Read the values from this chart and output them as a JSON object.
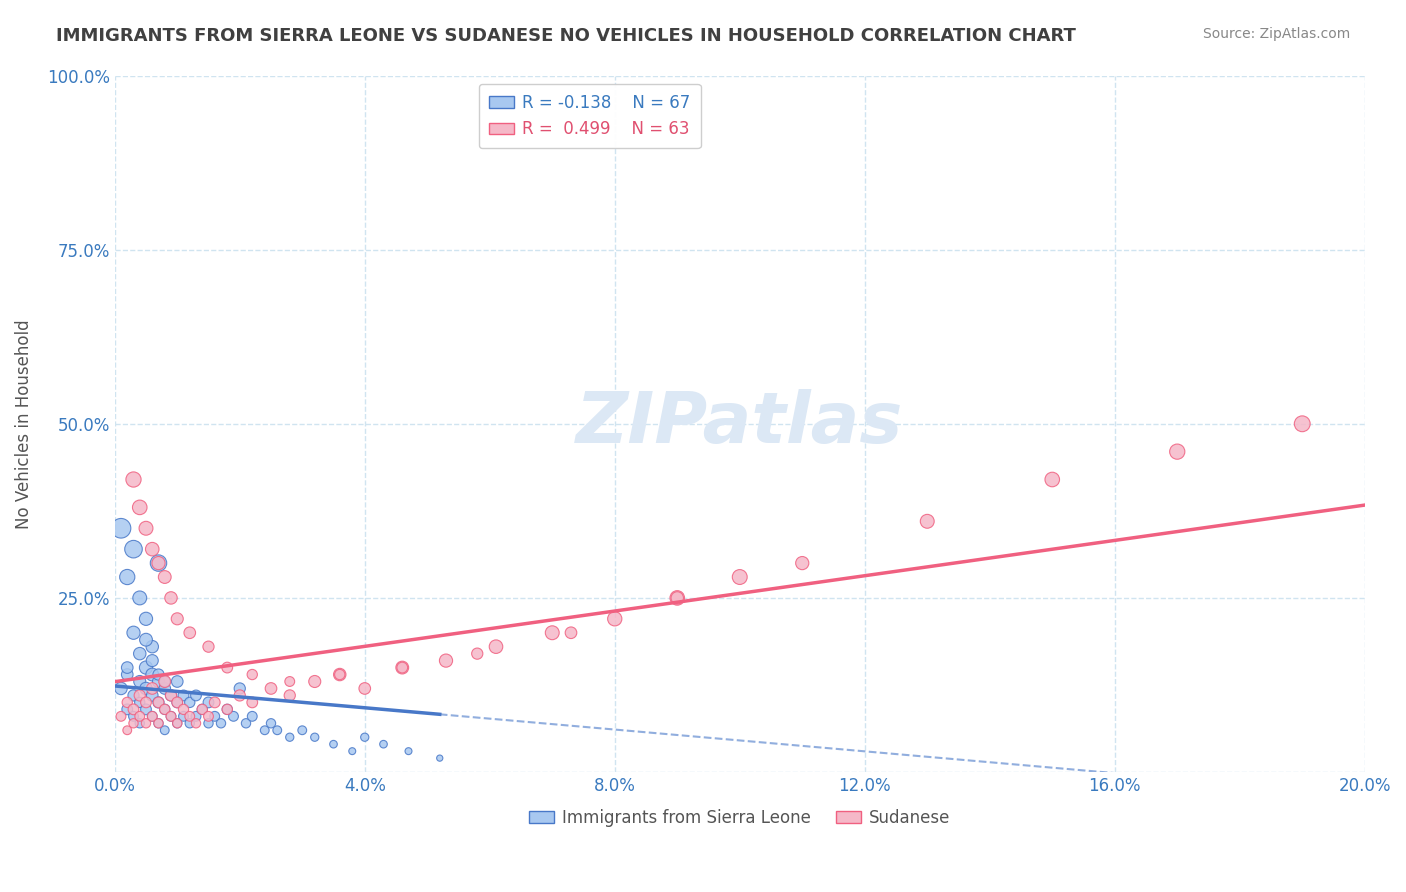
{
  "title": "IMMIGRANTS FROM SIERRA LEONE VS SUDANESE NO VEHICLES IN HOUSEHOLD CORRELATION CHART",
  "source": "Source: ZipAtlas.com",
  "xlabel": "",
  "ylabel": "No Vehicles in Household",
  "xlim": [
    0.0,
    0.2
  ],
  "ylim": [
    0.0,
    1.0
  ],
  "xticks": [
    0.0,
    0.04,
    0.08,
    0.12,
    0.16,
    0.2
  ],
  "yticks": [
    0.0,
    0.25,
    0.5,
    0.75,
    1.0
  ],
  "xticklabels": [
    "0.0%",
    "4.0%",
    "8.0%",
    "12.0%",
    "16.0%",
    "20.0%"
  ],
  "yticklabels": [
    "",
    "25.0%",
    "50.0%",
    "75.0%",
    "100.0%"
  ],
  "background_color": "#ffffff",
  "grid_color": "#d0e4f0",
  "sierra_leone_color": "#a8c8f0",
  "sudanese_color": "#f5b8c8",
  "sierra_leone_line_color": "#4878c8",
  "sudanese_line_color": "#f06080",
  "watermark_color": "#dce8f5",
  "legend_r_sierra": "R = -0.138",
  "legend_n_sierra": "N = 67",
  "legend_r_sudanese": "R =  0.499",
  "legend_n_sudanese": "N = 63",
  "sierra_leone_R": -0.138,
  "sierra_leone_N": 67,
  "sudanese_R": 0.499,
  "sudanese_N": 63,
  "sierra_leone_x": [
    0.001,
    0.002,
    0.002,
    0.003,
    0.003,
    0.004,
    0.004,
    0.004,
    0.005,
    0.005,
    0.005,
    0.006,
    0.006,
    0.006,
    0.007,
    0.007,
    0.007,
    0.008,
    0.008,
    0.008,
    0.009,
    0.009,
    0.01,
    0.01,
    0.01,
    0.011,
    0.011,
    0.012,
    0.012,
    0.013,
    0.013,
    0.014,
    0.015,
    0.015,
    0.016,
    0.017,
    0.018,
    0.019,
    0.02,
    0.021,
    0.022,
    0.024,
    0.025,
    0.026,
    0.028,
    0.03,
    0.032,
    0.035,
    0.038,
    0.04,
    0.043,
    0.047,
    0.052,
    0.001,
    0.002,
    0.003,
    0.004,
    0.005,
    0.006,
    0.007,
    0.002,
    0.003,
    0.004,
    0.005,
    0.006,
    0.007,
    0.008
  ],
  "sierra_leone_y": [
    0.12,
    0.09,
    0.14,
    0.08,
    0.11,
    0.1,
    0.13,
    0.07,
    0.09,
    0.12,
    0.15,
    0.08,
    0.11,
    0.14,
    0.07,
    0.1,
    0.13,
    0.09,
    0.12,
    0.06,
    0.08,
    0.11,
    0.07,
    0.1,
    0.13,
    0.08,
    0.11,
    0.07,
    0.1,
    0.08,
    0.11,
    0.09,
    0.07,
    0.1,
    0.08,
    0.07,
    0.09,
    0.08,
    0.12,
    0.07,
    0.08,
    0.06,
    0.07,
    0.06,
    0.05,
    0.06,
    0.05,
    0.04,
    0.03,
    0.05,
    0.04,
    0.03,
    0.02,
    0.35,
    0.28,
    0.32,
    0.25,
    0.22,
    0.18,
    0.3,
    0.15,
    0.2,
    0.17,
    0.19,
    0.16,
    0.14,
    0.13
  ],
  "sierra_leone_sizes": [
    80,
    60,
    70,
    50,
    65,
    55,
    75,
    45,
    60,
    80,
    90,
    50,
    70,
    85,
    45,
    65,
    75,
    55,
    70,
    40,
    50,
    65,
    45,
    60,
    70,
    50,
    60,
    45,
    55,
    50,
    60,
    55,
    45,
    60,
    50,
    45,
    55,
    50,
    65,
    45,
    50,
    40,
    45,
    40,
    35,
    40,
    35,
    30,
    25,
    35,
    30,
    25,
    20,
    200,
    120,
    160,
    100,
    90,
    80,
    140,
    70,
    90,
    80,
    85,
    75,
    65,
    60
  ],
  "sudanese_x": [
    0.001,
    0.002,
    0.002,
    0.003,
    0.003,
    0.004,
    0.004,
    0.005,
    0.005,
    0.006,
    0.006,
    0.007,
    0.007,
    0.008,
    0.008,
    0.009,
    0.009,
    0.01,
    0.01,
    0.011,
    0.012,
    0.013,
    0.014,
    0.015,
    0.016,
    0.018,
    0.02,
    0.022,
    0.025,
    0.028,
    0.032,
    0.036,
    0.04,
    0.046,
    0.053,
    0.061,
    0.07,
    0.08,
    0.09,
    0.1,
    0.003,
    0.004,
    0.005,
    0.006,
    0.007,
    0.008,
    0.009,
    0.01,
    0.012,
    0.015,
    0.018,
    0.022,
    0.028,
    0.036,
    0.046,
    0.058,
    0.073,
    0.09,
    0.11,
    0.13,
    0.15,
    0.17,
    0.19
  ],
  "sudanese_y": [
    0.08,
    0.06,
    0.1,
    0.07,
    0.09,
    0.08,
    0.11,
    0.07,
    0.1,
    0.08,
    0.12,
    0.07,
    0.1,
    0.09,
    0.13,
    0.08,
    0.11,
    0.07,
    0.1,
    0.09,
    0.08,
    0.07,
    0.09,
    0.08,
    0.1,
    0.09,
    0.11,
    0.1,
    0.12,
    0.11,
    0.13,
    0.14,
    0.12,
    0.15,
    0.16,
    0.18,
    0.2,
    0.22,
    0.25,
    0.28,
    0.42,
    0.38,
    0.35,
    0.32,
    0.3,
    0.28,
    0.25,
    0.22,
    0.2,
    0.18,
    0.15,
    0.14,
    0.13,
    0.14,
    0.15,
    0.17,
    0.2,
    0.25,
    0.3,
    0.36,
    0.42,
    0.46,
    0.5
  ],
  "sudanese_sizes": [
    50,
    40,
    55,
    45,
    60,
    50,
    65,
    45,
    60,
    50,
    70,
    45,
    60,
    55,
    75,
    50,
    65,
    45,
    60,
    55,
    50,
    45,
    55,
    50,
    60,
    55,
    65,
    60,
    70,
    65,
    75,
    80,
    70,
    85,
    90,
    95,
    100,
    105,
    110,
    115,
    120,
    110,
    100,
    95,
    90,
    85,
    80,
    75,
    70,
    65,
    60,
    55,
    50,
    55,
    60,
    65,
    70,
    80,
    90,
    100,
    110,
    120,
    130
  ]
}
